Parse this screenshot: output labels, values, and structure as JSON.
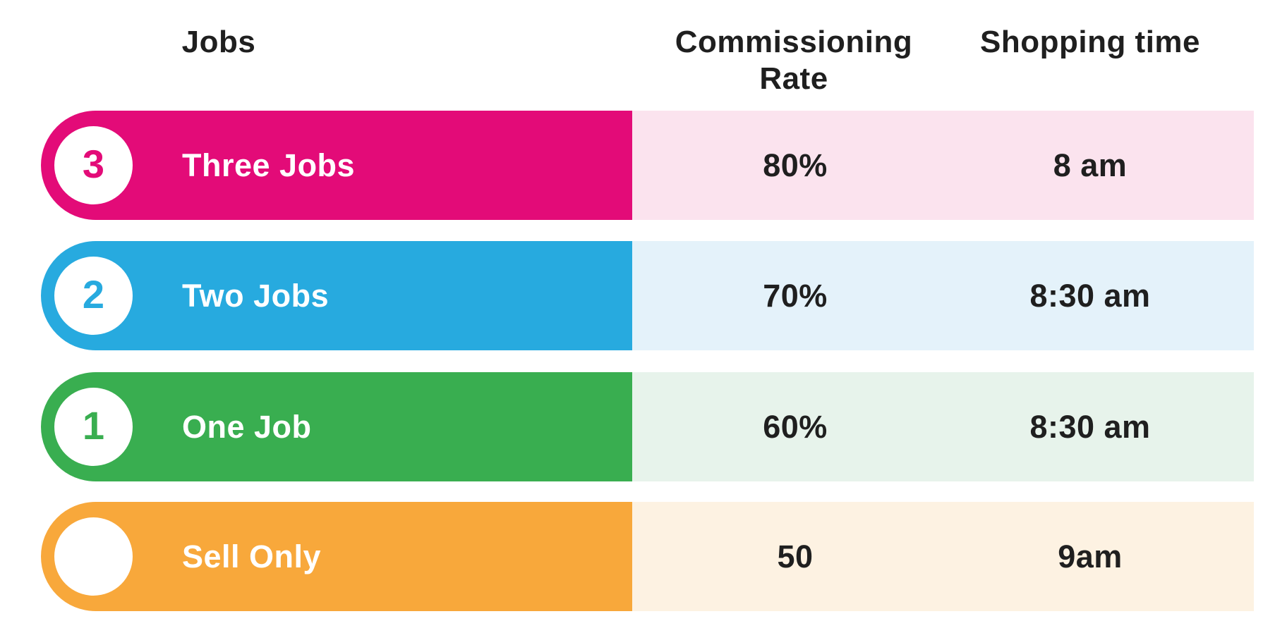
{
  "chart_data": {
    "type": "table",
    "columns": {
      "jobs": "Jobs",
      "rate": "Commissioning Rate",
      "time": "Shopping time"
    },
    "rows": [
      {
        "number": "3",
        "label": "Three Jobs",
        "rate": "80%",
        "time": "8 am"
      },
      {
        "number": "2",
        "label": "Two Jobs",
        "rate": "70%",
        "time": "8:30 am"
      },
      {
        "number": "1",
        "label": "One Job",
        "rate": "60%",
        "time": "8:30 am"
      },
      {
        "number": "",
        "label": "Sell Only",
        "rate": "50",
        "time": "9am"
      }
    ],
    "layout": "four horizontal pill rows; saturated bar on left with numbered white circle badge, pale tint panel on right holding rate and time values"
  },
  "colors": {
    "background": "#FFFFFF",
    "text": "#1F1F1F",
    "label_text": "#FFFFFF",
    "badge_fill": "#FFFFFF",
    "row_bars": [
      "#E30B78",
      "#27AADF",
      "#39AE50",
      "#F8A83B"
    ],
    "row_tints": [
      "#FBE3EE",
      "#E4F2FA",
      "#E7F3EB",
      "#FDF2E2"
    ]
  }
}
